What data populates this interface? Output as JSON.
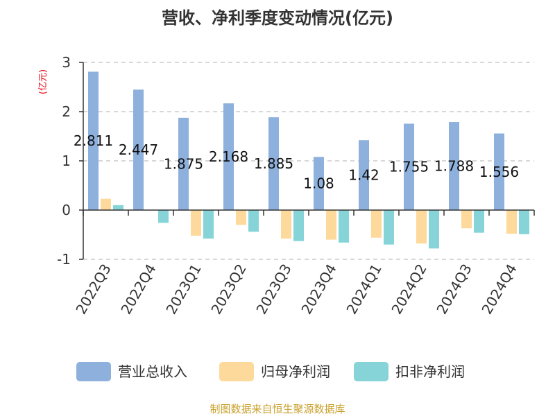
{
  "chart_data": {
    "type": "bar",
    "title": "营收、净利季度变动情况(亿元)",
    "ylabel": "(亿元)",
    "categories": [
      "2022Q3",
      "2022Q4",
      "2023Q1",
      "2023Q2",
      "2023Q3",
      "2023Q4",
      "2024Q1",
      "2024Q2",
      "2024Q3",
      "2024Q4"
    ],
    "series": [
      {
        "name": "营业总收入",
        "color": "#8eb0dc",
        "values": [
          2.811,
          2.447,
          1.875,
          2.168,
          1.885,
          1.08,
          1.42,
          1.755,
          1.788,
          1.556
        ],
        "labels": [
          "2.811",
          "2.447",
          "1.875",
          "2.168",
          "1.885",
          "1.08",
          "1.42",
          "1.755",
          "1.788",
          "1.556"
        ]
      },
      {
        "name": "归母净利润",
        "color": "#fdd99b",
        "values": [
          0.23,
          0.005,
          -0.52,
          -0.3,
          -0.58,
          -0.6,
          -0.56,
          -0.68,
          -0.37,
          -0.48
        ]
      },
      {
        "name": "扣非净利润",
        "color": "#86d4d8",
        "values": [
          0.1,
          -0.26,
          -0.58,
          -0.44,
          -0.63,
          -0.66,
          -0.7,
          -0.78,
          -0.46,
          -0.49
        ]
      }
    ],
    "ylim": [
      -1,
      3
    ],
    "yticks": [
      -1,
      0,
      1,
      2,
      3
    ],
    "grid": true,
    "legend": "bottom"
  },
  "source_text": "制图数据来自恒生聚源数据库"
}
